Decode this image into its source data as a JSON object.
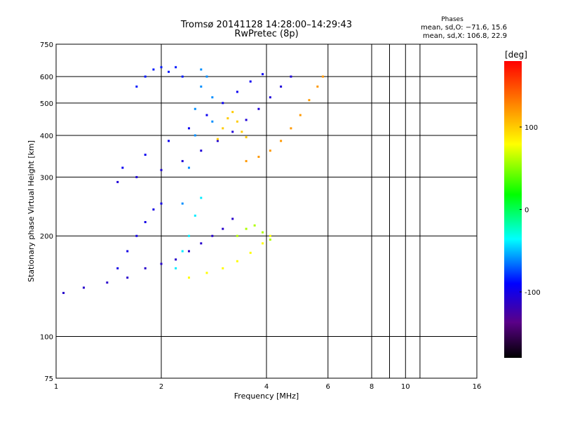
{
  "header": {
    "title": "Tromsø 20141128 14:28:00–14:29:43",
    "subtitle": "RwPretec (8p)",
    "stats_title": "Phases",
    "stats_o": "mean, sd,O: −71.6, 15.6",
    "stats_x": "mean, sd,X: 106.8, 22.9"
  },
  "colorbar": {
    "label": "[deg]",
    "ticks": [
      {
        "value": 100,
        "label": "100"
      },
      {
        "value": 0,
        "label": "0"
      },
      {
        "value": -100,
        "label": "-100"
      }
    ],
    "range": [
      -180,
      180
    ],
    "colormap": "rainbow (black-purple-blue-cyan-green-yellow-orange-red)"
  },
  "chart_data": {
    "type": "scatter",
    "title": "Tromsø 20141128 14:28:00–14:29:43",
    "subtitle": "RwPretec (8p)",
    "xlabel": "Frequency [MHz]",
    "ylabel": "Stationary phase Virtual Height [km]",
    "xscale": "log",
    "yscale": "log",
    "xlim": [
      1,
      16
    ],
    "ylim": [
      75,
      750
    ],
    "xticks": [
      1,
      2,
      4,
      6,
      8,
      10,
      16
    ],
    "xtick_labels": [
      "1",
      "2",
      "4",
      "6",
      "8",
      "10",
      "16"
    ],
    "yticks": [
      75,
      100,
      200,
      300,
      400,
      500,
      600,
      750
    ],
    "ytick_labels": [
      "75",
      "100",
      "200",
      "300",
      "400",
      "500",
      "600",
      "750"
    ],
    "grid": true,
    "color_variable": "phase [deg]",
    "traces": [
      {
        "name": "",
        "phase": -105,
        "points": [
          [
            1.5,
            290
          ],
          [
            1.7,
            300
          ],
          [
            2.0,
            315
          ],
          [
            2.3,
            335
          ],
          [
            2.6,
            360
          ],
          [
            2.9,
            385
          ],
          [
            3.2,
            410
          ],
          [
            3.5,
            445
          ],
          [
            3.8,
            480
          ],
          [
            4.1,
            520
          ],
          [
            4.4,
            560
          ],
          [
            4.7,
            600
          ]
        ]
      },
      {
        "name": "",
        "phase": -95,
        "points": [
          [
            1.55,
            320
          ],
          [
            1.8,
            350
          ],
          [
            2.1,
            385
          ],
          [
            2.4,
            420
          ],
          [
            2.7,
            460
          ],
          [
            3.0,
            500
          ],
          [
            3.3,
            540
          ],
          [
            3.6,
            580
          ],
          [
            3.9,
            610
          ]
        ]
      },
      {
        "name": "",
        "phase": -85,
        "points": [
          [
            1.7,
            560
          ],
          [
            1.8,
            600
          ],
          [
            1.9,
            630
          ],
          [
            2.0,
            640
          ],
          [
            2.1,
            620
          ],
          [
            2.2,
            640
          ],
          [
            2.3,
            600
          ]
        ]
      },
      {
        "name": "",
        "phase": -60,
        "points": [
          [
            2.3,
            250
          ],
          [
            2.4,
            320
          ],
          [
            2.5,
            400
          ],
          [
            2.5,
            480
          ],
          [
            2.6,
            560
          ],
          [
            2.6,
            630
          ],
          [
            2.7,
            600
          ],
          [
            2.8,
            520
          ],
          [
            2.8,
            440
          ]
        ]
      },
      {
        "name": "",
        "phase": 120,
        "points": [
          [
            3.5,
            335
          ],
          [
            3.8,
            345
          ],
          [
            4.1,
            360
          ],
          [
            4.4,
            385
          ],
          [
            4.7,
            420
          ],
          [
            5.0,
            460
          ],
          [
            5.3,
            510
          ],
          [
            5.6,
            560
          ],
          [
            5.8,
            600
          ]
        ]
      },
      {
        "name": "",
        "phase": 100,
        "points": [
          [
            2.9,
            390
          ],
          [
            3.0,
            420
          ],
          [
            3.1,
            450
          ],
          [
            3.2,
            470
          ],
          [
            3.3,
            440
          ],
          [
            3.4,
            410
          ],
          [
            3.5,
            395
          ]
        ]
      },
      {
        "name": "",
        "phase": -110,
        "points": [
          [
            1.05,
            135
          ],
          [
            1.2,
            140
          ],
          [
            1.4,
            145
          ],
          [
            1.6,
            150
          ],
          [
            1.8,
            160
          ],
          [
            2.0,
            165
          ],
          [
            2.2,
            170
          ],
          [
            2.4,
            180
          ],
          [
            2.6,
            190
          ],
          [
            2.8,
            200
          ],
          [
            3.0,
            210
          ],
          [
            3.2,
            225
          ]
        ]
      },
      {
        "name": "",
        "phase": -100,
        "points": [
          [
            1.5,
            160
          ],
          [
            1.6,
            180
          ],
          [
            1.7,
            200
          ],
          [
            1.8,
            220
          ],
          [
            1.9,
            240
          ],
          [
            2.0,
            250
          ]
        ]
      },
      {
        "name": "",
        "phase": -40,
        "points": [
          [
            2.2,
            160
          ],
          [
            2.3,
            180
          ],
          [
            2.4,
            200
          ],
          [
            2.5,
            230
          ],
          [
            2.6,
            260
          ]
        ]
      },
      {
        "name": "",
        "phase": 80,
        "points": [
          [
            2.4,
            150
          ],
          [
            2.7,
            155
          ],
          [
            3.0,
            160
          ],
          [
            3.3,
            168
          ],
          [
            3.6,
            178
          ],
          [
            3.9,
            190
          ],
          [
            4.1,
            200
          ]
        ]
      },
      {
        "name": "",
        "phase": 60,
        "points": [
          [
            3.3,
            200
          ],
          [
            3.5,
            210
          ],
          [
            3.7,
            215
          ],
          [
            3.9,
            205
          ],
          [
            4.1,
            195
          ]
        ]
      }
    ]
  }
}
